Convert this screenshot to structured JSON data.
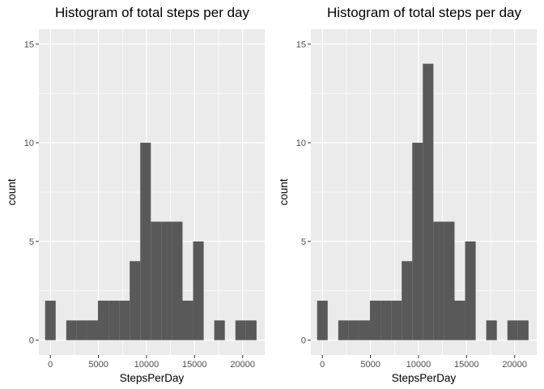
{
  "chart_data": [
    {
      "type": "bar",
      "title": "Histogram of total steps per day",
      "xlabel": "StepsPerDay",
      "ylabel": "count",
      "xlim": [
        -1200,
        22300
      ],
      "ylim": [
        -0.75,
        15.75
      ],
      "xticks": [
        0,
        5000,
        10000,
        15000,
        20000
      ],
      "yticks": [
        0,
        5,
        10,
        15
      ],
      "bin_width": 1100,
      "bins": [
        {
          "x0": -550,
          "x1": 550,
          "count": 2
        },
        {
          "x0": 550,
          "x1": 1650,
          "count": 0
        },
        {
          "x0": 1650,
          "x1": 2750,
          "count": 1
        },
        {
          "x0": 2750,
          "x1": 3850,
          "count": 1
        },
        {
          "x0": 3850,
          "x1": 4950,
          "count": 1
        },
        {
          "x0": 4950,
          "x1": 6050,
          "count": 2
        },
        {
          "x0": 6050,
          "x1": 7150,
          "count": 2
        },
        {
          "x0": 7150,
          "x1": 8250,
          "count": 2
        },
        {
          "x0": 8250,
          "x1": 9350,
          "count": 4
        },
        {
          "x0": 9350,
          "x1": 10450,
          "count": 10
        },
        {
          "x0": 10450,
          "x1": 11550,
          "count": 6
        },
        {
          "x0": 11550,
          "x1": 12650,
          "count": 6
        },
        {
          "x0": 12650,
          "x1": 13750,
          "count": 6
        },
        {
          "x0": 13750,
          "x1": 14850,
          "count": 2
        },
        {
          "x0": 14850,
          "x1": 15950,
          "count": 5
        },
        {
          "x0": 15950,
          "x1": 17050,
          "count": 0
        },
        {
          "x0": 17050,
          "x1": 18150,
          "count": 1
        },
        {
          "x0": 18150,
          "x1": 19250,
          "count": 0
        },
        {
          "x0": 19250,
          "x1": 20350,
          "count": 1
        },
        {
          "x0": 20350,
          "x1": 21450,
          "count": 1
        }
      ]
    },
    {
      "type": "bar",
      "title": "Histogram of total steps per day",
      "xlabel": "StepsPerDay",
      "ylabel": "count",
      "xlim": [
        -1200,
        22300
      ],
      "ylim": [
        -0.75,
        15.75
      ],
      "xticks": [
        0,
        5000,
        10000,
        15000,
        20000
      ],
      "yticks": [
        0,
        5,
        10,
        15
      ],
      "bin_width": 1100,
      "bins": [
        {
          "x0": -550,
          "x1": 550,
          "count": 2
        },
        {
          "x0": 550,
          "x1": 1650,
          "count": 0
        },
        {
          "x0": 1650,
          "x1": 2750,
          "count": 1
        },
        {
          "x0": 2750,
          "x1": 3850,
          "count": 1
        },
        {
          "x0": 3850,
          "x1": 4950,
          "count": 1
        },
        {
          "x0": 4950,
          "x1": 6050,
          "count": 2
        },
        {
          "x0": 6050,
          "x1": 7150,
          "count": 2
        },
        {
          "x0": 7150,
          "x1": 8250,
          "count": 2
        },
        {
          "x0": 8250,
          "x1": 9350,
          "count": 4
        },
        {
          "x0": 9350,
          "x1": 10450,
          "count": 10
        },
        {
          "x0": 10450,
          "x1": 11550,
          "count": 14
        },
        {
          "x0": 11550,
          "x1": 12650,
          "count": 6
        },
        {
          "x0": 12650,
          "x1": 13750,
          "count": 6
        },
        {
          "x0": 13750,
          "x1": 14850,
          "count": 2
        },
        {
          "x0": 14850,
          "x1": 15950,
          "count": 5
        },
        {
          "x0": 15950,
          "x1": 17050,
          "count": 0
        },
        {
          "x0": 17050,
          "x1": 18150,
          "count": 1
        },
        {
          "x0": 18150,
          "x1": 19250,
          "count": 0
        },
        {
          "x0": 19250,
          "x1": 20350,
          "count": 1
        },
        {
          "x0": 20350,
          "x1": 21450,
          "count": 1
        }
      ]
    }
  ],
  "style": {
    "panel_background": "#EBEBEB",
    "grid_major": "#FFFFFF",
    "bar_fill": "#595959",
    "tick_color": "#333333"
  }
}
